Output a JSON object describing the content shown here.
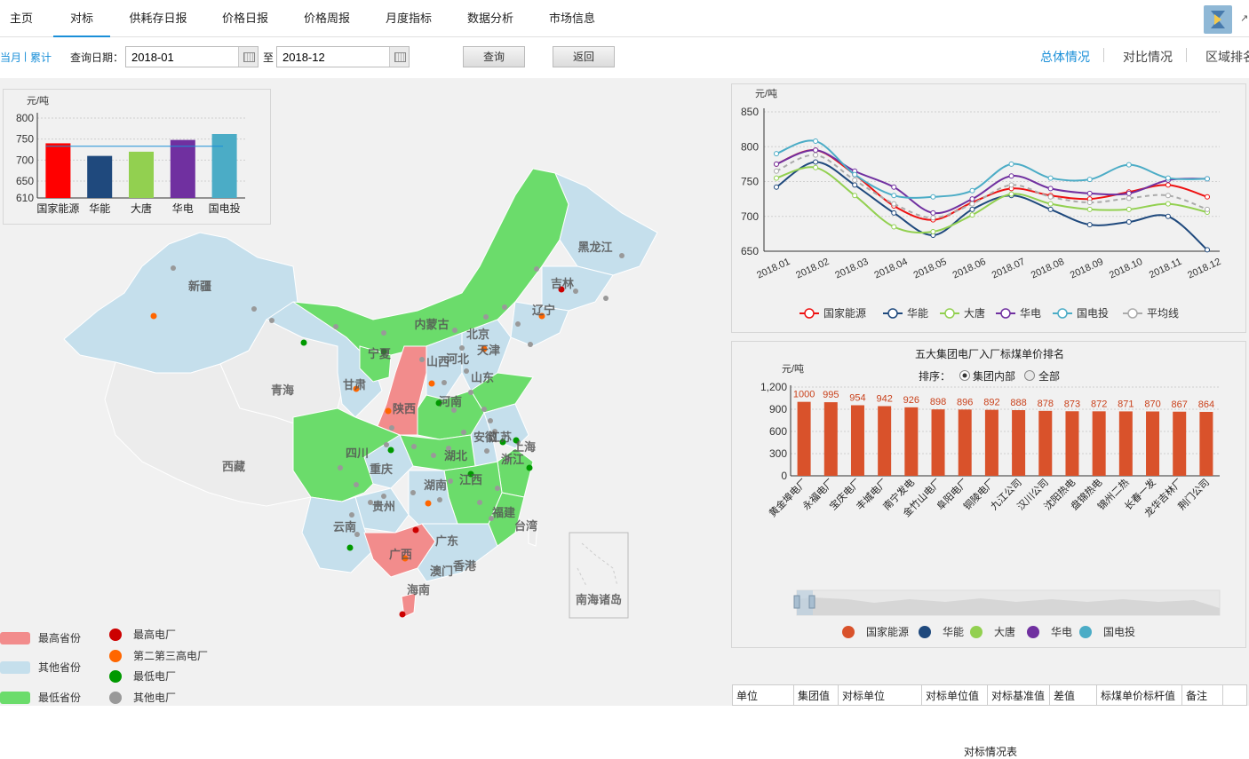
{
  "nav": {
    "items": [
      "主页",
      "对标",
      "供耗存日报",
      "价格日报",
      "价格周报",
      "月度指标",
      "数据分析",
      "市场信息"
    ],
    "active_index": 1
  },
  "toolbar": {
    "current_month": "当月",
    "separator": "|",
    "cumulative": "累计",
    "date_label": "查询日期：",
    "start_date": "2018-01",
    "to_label": "至",
    "end_date": "2018-12",
    "query_button": "查询",
    "back_button": "返回"
  },
  "right_tabs": [
    "总体情况",
    "对比情况",
    "区域排名"
  ],
  "colors": {
    "accent": "#1a8fd8",
    "guoneng": "#ee1111",
    "huaneng": "#1f497d",
    "datang": "#92d050",
    "huadian": "#7030a0",
    "guodiantou": "#4bacc6",
    "average": "#aaaaaa",
    "rank_bar": "#d9522b",
    "highest_province": "#f28c8c",
    "other_province": "#c5dfec",
    "lowest_province": "#6bdc6b",
    "plant_highest": "#cc0000",
    "plant_second": "#ff6600",
    "plant_lowest": "#009900",
    "plant_other": "#999999"
  },
  "small_bar": {
    "chart_data": {
      "type": "bar",
      "ylabel": "元/吨",
      "categories": [
        "国家能源",
        "华能",
        "大唐",
        "华电",
        "国电投"
      ],
      "values": [
        740,
        710,
        720,
        748,
        762
      ],
      "colors": [
        "#ff0000",
        "#1f497d",
        "#92d050",
        "#7030a0",
        "#4bacc6"
      ],
      "yticks": [
        610,
        650,
        700,
        750,
        800
      ],
      "ylim": [
        610,
        800
      ],
      "reference_line": 733
    }
  },
  "map": {
    "labels": [
      "新疆",
      "青海",
      "西藏",
      "甘肃",
      "宁夏",
      "内蒙古",
      "黑龙江",
      "吉林",
      "辽宁",
      "北京",
      "天津",
      "河北",
      "山西",
      "山东",
      "陕西",
      "河南",
      "江苏",
      "安徽",
      "上海",
      "四川",
      "重庆",
      "湖北",
      "浙江",
      "江西",
      "湖南",
      "贵州",
      "云南",
      "福建",
      "台湾",
      "广西",
      "广东",
      "香港",
      "澳门",
      "海南",
      "南海诸岛"
    ],
    "legend_provinces": [
      "最高省份",
      "其他省份",
      "最低省份"
    ],
    "legend_plants": [
      "最高电厂",
      "第二第三高电厂",
      "最低电厂",
      "其他电厂"
    ]
  },
  "line_chart": {
    "chart_data": {
      "type": "line",
      "ylabel": "元/吨",
      "ylim": [
        650,
        850
      ],
      "yticks": [
        650,
        700,
        750,
        800,
        850
      ],
      "x": [
        "2018.01",
        "2018.02",
        "2018.03",
        "2018.04",
        "2018.05",
        "2018.06",
        "2018.07",
        "2018.08",
        "2018.09",
        "2018.10",
        "2018.11",
        "2018.12"
      ],
      "series": [
        {
          "name": "国家能源",
          "values": [
            775,
            795,
            760,
            715,
            695,
            720,
            740,
            730,
            725,
            735,
            745,
            728
          ],
          "color": "#ee1111"
        },
        {
          "name": "华能",
          "values": [
            742,
            778,
            745,
            705,
            673,
            710,
            730,
            710,
            688,
            692,
            700,
            652
          ],
          "color": "#1f497d"
        },
        {
          "name": "大唐",
          "values": [
            755,
            770,
            730,
            685,
            678,
            702,
            732,
            718,
            710,
            710,
            718,
            706
          ],
          "color": "#92d050"
        },
        {
          "name": "华电",
          "values": [
            775,
            795,
            765,
            742,
            705,
            725,
            758,
            740,
            733,
            733,
            752,
            754
          ],
          "color": "#7030a0"
        },
        {
          "name": "国电投",
          "values": [
            790,
            808,
            760,
            730,
            728,
            737,
            775,
            755,
            753,
            774,
            755,
            754
          ],
          "color": "#4bacc6"
        },
        {
          "name": "平均线",
          "values": [
            765,
            788,
            752,
            718,
            698,
            718,
            745,
            728,
            720,
            726,
            730,
            710
          ],
          "color": "#aaaaaa",
          "dashed": true
        }
      ]
    }
  },
  "rank_chart": {
    "chart_data": {
      "type": "bar",
      "title": "五大集团电厂入厂标煤单价排名",
      "ylabel": "元/吨",
      "ylim": [
        0,
        1200
      ],
      "yticks": [
        0,
        300,
        600,
        900,
        1200
      ],
      "ytick_labels": [
        "0",
        "300",
        "600",
        "900",
        "1,200"
      ],
      "categories": [
        "黄金埠电厂",
        "永福电厂",
        "宝庆电厂",
        "丰城电厂",
        "南宁发电",
        "金竹山电厂",
        "阜阳电厂",
        "铜陵电厂",
        "九江公司",
        "汉川公司",
        "沈阳热电",
        "盘锦热电",
        "锦州二热",
        "长春一发",
        "龙华吉林厂",
        "荆门公司"
      ],
      "values": [
        1000,
        995,
        954,
        942,
        926,
        898,
        896,
        892,
        888,
        878,
        873,
        872,
        871,
        870,
        867,
        864
      ]
    },
    "sort_label": "排序：",
    "sort_options": [
      "集团内部",
      "全部"
    ],
    "legend": [
      "国家能源",
      "华能",
      "大唐",
      "华电",
      "国电投"
    ]
  },
  "table": {
    "title": "对标情况表",
    "headers": [
      "单位",
      "集团值",
      "对标单位",
      "对标单位值",
      "对标基准值",
      "差值",
      "标煤单价标杆值",
      "备注"
    ]
  }
}
